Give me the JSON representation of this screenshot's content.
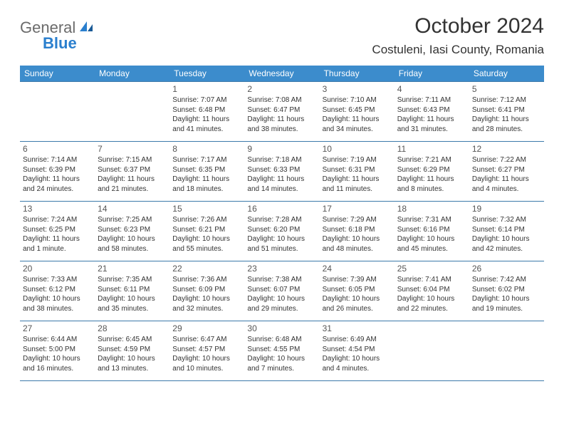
{
  "brand": {
    "text1": "General",
    "text2": "Blue",
    "grey": "#6b6b6b",
    "blue": "#2a7fce"
  },
  "title": "October 2024",
  "location": "Costuleni, Iasi County, Romania",
  "colors": {
    "header_bg": "#3c8ccc",
    "header_fg": "#ffffff",
    "rule": "#3c7aaa",
    "text": "#333333",
    "bg": "#ffffff"
  },
  "weekdays": [
    "Sunday",
    "Monday",
    "Tuesday",
    "Wednesday",
    "Thursday",
    "Friday",
    "Saturday"
  ],
  "weeks": [
    [
      null,
      null,
      {
        "d": "1",
        "sr": "7:07 AM",
        "ss": "6:48 PM",
        "dl": "11 hours and 41 minutes."
      },
      {
        "d": "2",
        "sr": "7:08 AM",
        "ss": "6:47 PM",
        "dl": "11 hours and 38 minutes."
      },
      {
        "d": "3",
        "sr": "7:10 AM",
        "ss": "6:45 PM",
        "dl": "11 hours and 34 minutes."
      },
      {
        "d": "4",
        "sr": "7:11 AM",
        "ss": "6:43 PM",
        "dl": "11 hours and 31 minutes."
      },
      {
        "d": "5",
        "sr": "7:12 AM",
        "ss": "6:41 PM",
        "dl": "11 hours and 28 minutes."
      }
    ],
    [
      {
        "d": "6",
        "sr": "7:14 AM",
        "ss": "6:39 PM",
        "dl": "11 hours and 24 minutes."
      },
      {
        "d": "7",
        "sr": "7:15 AM",
        "ss": "6:37 PM",
        "dl": "11 hours and 21 minutes."
      },
      {
        "d": "8",
        "sr": "7:17 AM",
        "ss": "6:35 PM",
        "dl": "11 hours and 18 minutes."
      },
      {
        "d": "9",
        "sr": "7:18 AM",
        "ss": "6:33 PM",
        "dl": "11 hours and 14 minutes."
      },
      {
        "d": "10",
        "sr": "7:19 AM",
        "ss": "6:31 PM",
        "dl": "11 hours and 11 minutes."
      },
      {
        "d": "11",
        "sr": "7:21 AM",
        "ss": "6:29 PM",
        "dl": "11 hours and 8 minutes."
      },
      {
        "d": "12",
        "sr": "7:22 AM",
        "ss": "6:27 PM",
        "dl": "11 hours and 4 minutes."
      }
    ],
    [
      {
        "d": "13",
        "sr": "7:24 AM",
        "ss": "6:25 PM",
        "dl": "11 hours and 1 minute."
      },
      {
        "d": "14",
        "sr": "7:25 AM",
        "ss": "6:23 PM",
        "dl": "10 hours and 58 minutes."
      },
      {
        "d": "15",
        "sr": "7:26 AM",
        "ss": "6:21 PM",
        "dl": "10 hours and 55 minutes."
      },
      {
        "d": "16",
        "sr": "7:28 AM",
        "ss": "6:20 PM",
        "dl": "10 hours and 51 minutes."
      },
      {
        "d": "17",
        "sr": "7:29 AM",
        "ss": "6:18 PM",
        "dl": "10 hours and 48 minutes."
      },
      {
        "d": "18",
        "sr": "7:31 AM",
        "ss": "6:16 PM",
        "dl": "10 hours and 45 minutes."
      },
      {
        "d": "19",
        "sr": "7:32 AM",
        "ss": "6:14 PM",
        "dl": "10 hours and 42 minutes."
      }
    ],
    [
      {
        "d": "20",
        "sr": "7:33 AM",
        "ss": "6:12 PM",
        "dl": "10 hours and 38 minutes."
      },
      {
        "d": "21",
        "sr": "7:35 AM",
        "ss": "6:11 PM",
        "dl": "10 hours and 35 minutes."
      },
      {
        "d": "22",
        "sr": "7:36 AM",
        "ss": "6:09 PM",
        "dl": "10 hours and 32 minutes."
      },
      {
        "d": "23",
        "sr": "7:38 AM",
        "ss": "6:07 PM",
        "dl": "10 hours and 29 minutes."
      },
      {
        "d": "24",
        "sr": "7:39 AM",
        "ss": "6:05 PM",
        "dl": "10 hours and 26 minutes."
      },
      {
        "d": "25",
        "sr": "7:41 AM",
        "ss": "6:04 PM",
        "dl": "10 hours and 22 minutes."
      },
      {
        "d": "26",
        "sr": "7:42 AM",
        "ss": "6:02 PM",
        "dl": "10 hours and 19 minutes."
      }
    ],
    [
      {
        "d": "27",
        "sr": "6:44 AM",
        "ss": "5:00 PM",
        "dl": "10 hours and 16 minutes."
      },
      {
        "d": "28",
        "sr": "6:45 AM",
        "ss": "4:59 PM",
        "dl": "10 hours and 13 minutes."
      },
      {
        "d": "29",
        "sr": "6:47 AM",
        "ss": "4:57 PM",
        "dl": "10 hours and 10 minutes."
      },
      {
        "d": "30",
        "sr": "6:48 AM",
        "ss": "4:55 PM",
        "dl": "10 hours and 7 minutes."
      },
      {
        "d": "31",
        "sr": "6:49 AM",
        "ss": "4:54 PM",
        "dl": "10 hours and 4 minutes."
      },
      null,
      null
    ]
  ],
  "labels": {
    "sunrise": "Sunrise:",
    "sunset": "Sunset:",
    "daylight": "Daylight:"
  }
}
